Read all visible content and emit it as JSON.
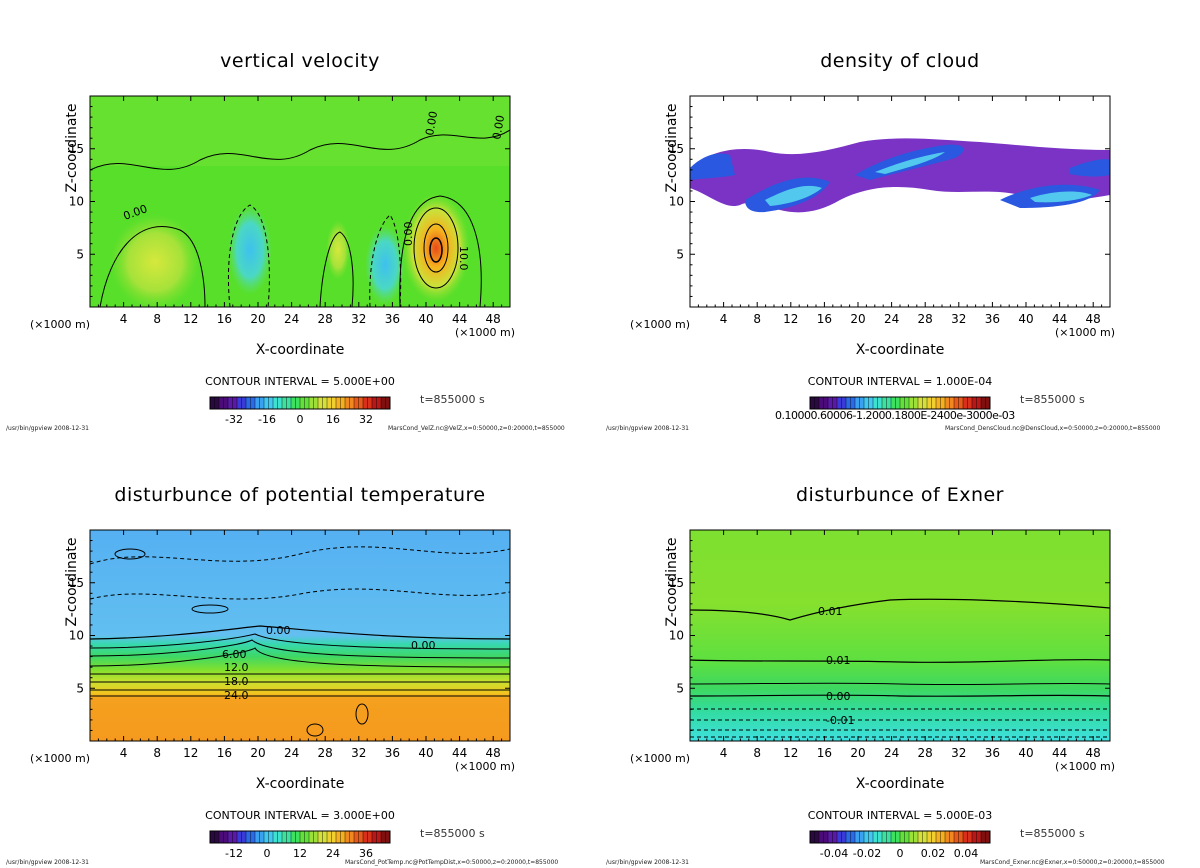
{
  "colors": {
    "vz_bg": "#56e026",
    "vz_light": "#9ce23c",
    "vz_cyan": "#46c8e6",
    "cloud_purple": "#7a33c4",
    "cloud_blue": "#2a58e0",
    "cloud_cyan": "#52c8ee",
    "pt_blue": "#5bb6f0",
    "pt_orange": "#f59a1e",
    "ex_green": "#7de030",
    "ex_cyan": "#42dede"
  },
  "panels": [
    {
      "id": "velz",
      "title": "vertical velocity",
      "ylabel": "Z-coordinate",
      "xlabel": "X-coordinate",
      "x_unit": "(×1000 m)",
      "contour_interval": "CONTOUR INTERVAL = 5.000E+00",
      "time": "t=855000 s",
      "colorbar_ticks": [
        "-32",
        "-16",
        "0",
        "16",
        "32"
      ],
      "footer_left": "/usr/bin/gpview   2008-12-31",
      "footer_right": "MarsCond_VelZ.nc@VelZ,x=0:50000,z=0:20000,t=855000",
      "contour_labels": [
        "0.00",
        "0.00",
        "0.00",
        "0.00",
        "10.0"
      ]
    },
    {
      "id": "cloud",
      "title": "density of cloud",
      "ylabel": "Z-coordinate",
      "xlabel": "X-coordinate",
      "x_unit": "(×1000 m)",
      "contour_interval": "CONTOUR INTERVAL = 1.000E-04",
      "time": "t=855000 s",
      "colorbar_text": "0.10000.60006-1.2000.1800E-2400e-3000e-03",
      "footer_left": "/usr/bin/gpview   2008-12-31",
      "footer_right": "MarsCond_DensCloud.nc@DensCloud,x=0:50000,z=0:20000,t=855000"
    },
    {
      "id": "pottemp",
      "title": "disturbunce of potential temperature",
      "ylabel": "Z-coordinate",
      "xlabel": "X-coordinate",
      "x_unit": "(×1000 m)",
      "contour_interval": "CONTOUR INTERVAL = 3.000E+00",
      "time": "t=855000 s",
      "colorbar_ticks": [
        "-12",
        "0",
        "12",
        "24",
        "36"
      ],
      "footer_left": "/usr/bin/gpview   2008-12-31",
      "footer_right": "MarsCond_PotTemp.nc@PotTempDist,x=0:50000,z=0:20000,t=855000",
      "contour_labels": [
        "0.00",
        "0.00",
        "6.00",
        "12.0",
        "18.0",
        "24.0"
      ]
    },
    {
      "id": "exner",
      "title": "disturbunce of Exner",
      "ylabel": "Z-coordinate",
      "xlabel": "X-coordinate",
      "x_unit": "(×1000 m)",
      "contour_interval": "CONTOUR INTERVAL = 5.000E-03",
      "time": "t=855000 s",
      "colorbar_ticks": [
        "-0.04",
        "-0.02",
        "0",
        "0.02",
        "0.04"
      ],
      "footer_left": "/usr/bin/gpview   2008-12-31",
      "footer_right": "MarsCond_Exner.nc@Exner,x=0:50000,z=0:20000,t=855000",
      "contour_labels": [
        "0.01",
        "0.01",
        "0.00",
        "-0.01"
      ]
    }
  ],
  "chart_data": [
    {
      "type": "heatmap",
      "title": "vertical velocity",
      "xlabel": "X-coordinate",
      "ylabel": "Z-coordinate",
      "xlim": [
        0,
        50
      ],
      "ylim": [
        0,
        20
      ],
      "x_ticks": [
        4,
        8,
        12,
        16,
        20,
        24,
        28,
        32,
        36,
        40,
        44,
        48
      ],
      "y_ticks": [
        5,
        10,
        15
      ],
      "contour_interval": 5.0,
      "colorbar_range": [
        -40,
        40
      ],
      "features": [
        {
          "x": 8,
          "z": 4,
          "value": 10
        },
        {
          "x": 20,
          "z": 5,
          "value": -10
        },
        {
          "x": 35,
          "z": 4,
          "value": -8
        },
        {
          "x": 41,
          "z": 5,
          "value": 30
        }
      ]
    },
    {
      "type": "heatmap",
      "title": "density of cloud",
      "xlabel": "X-coordinate",
      "ylabel": "Z-coordinate",
      "xlim": [
        0,
        50
      ],
      "ylim": [
        0,
        20
      ],
      "x_ticks": [
        4,
        8,
        12,
        16,
        20,
        24,
        28,
        32,
        36,
        40,
        44,
        48
      ],
      "y_ticks": [
        5,
        10,
        15
      ],
      "contour_interval": 0.0001,
      "cloud_layer_z": [
        9,
        15.5
      ]
    },
    {
      "type": "heatmap",
      "title": "disturbunce of potential temperature",
      "xlabel": "X-coordinate",
      "ylabel": "Z-coordinate",
      "xlim": [
        0,
        50
      ],
      "ylim": [
        0,
        20
      ],
      "x_ticks": [
        4,
        8,
        12,
        16,
        20,
        24,
        28,
        32,
        36,
        40,
        44,
        48
      ],
      "y_ticks": [
        5,
        10,
        15
      ],
      "contour_interval": 3.0,
      "colorbar_range": [
        -15,
        39
      ],
      "contours": [
        {
          "label": "0.00",
          "z": 9.5
        },
        {
          "label": "6.00",
          "z": 8.0
        },
        {
          "label": "12.0",
          "z": 6.8
        },
        {
          "label": "18.0",
          "z": 5.6
        },
        {
          "label": "24.0",
          "z": 4.2
        }
      ]
    },
    {
      "type": "heatmap",
      "title": "disturbunce of Exner",
      "xlabel": "X-coordinate",
      "ylabel": "Z-coordinate",
      "xlim": [
        0,
        50
      ],
      "ylim": [
        0,
        20
      ],
      "x_ticks": [
        4,
        8,
        12,
        16,
        20,
        24,
        28,
        32,
        36,
        40,
        44,
        48
      ],
      "y_ticks": [
        5,
        10,
        15
      ],
      "contour_interval": 0.005,
      "colorbar_range": [
        -0.05,
        0.05
      ],
      "contours": [
        {
          "label": "0.01",
          "z": 12.5
        },
        {
          "label": "0.01",
          "z": 7.5
        },
        {
          "label": "0.00",
          "z": 4.0
        },
        {
          "label": "-0.01",
          "z": 1.8
        }
      ]
    }
  ]
}
